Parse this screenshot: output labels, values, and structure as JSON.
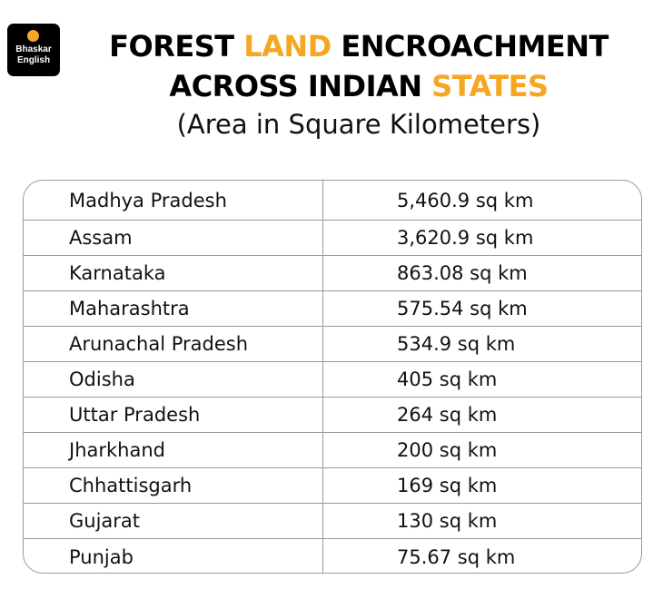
{
  "logo": {
    "line1": "Bhaskar",
    "line2": "English",
    "dot_color": "#f5a623"
  },
  "title": {
    "line1_part1": "FOREST ",
    "line1_accent": "LAND",
    "line1_part2": " ENCROACHMENT",
    "line2_part1": "ACROSS INDIAN ",
    "line2_accent": "STATES",
    "accent_color": "#f5a623"
  },
  "subtitle": "(Area in Square Kilometers)",
  "chart_data": {
    "type": "table",
    "title": "FOREST LAND ENCROACHMENT ACROSS INDIAN STATES",
    "subtitle": "(Area in Square Kilometers)",
    "columns": [
      "",
      ""
    ],
    "rows": [
      {
        "state": "Madhya Pradesh",
        "area": "5,460.9 sq km",
        "value": 5460.9
      },
      {
        "state": "Assam",
        "area": "3,620.9 sq km",
        "value": 3620.9
      },
      {
        "state": "Karnataka",
        "area": "863.08 sq km",
        "value": 863.08
      },
      {
        "state": "Maharashtra",
        "area": "575.54 sq km",
        "value": 575.54
      },
      {
        "state": "Arunachal Pradesh",
        "area": "534.9 sq km",
        "value": 534.9
      },
      {
        "state": "Odisha",
        "area": "405 sq km",
        "value": 405
      },
      {
        "state": "Uttar Pradesh",
        "area": "264 sq km",
        "value": 264
      },
      {
        "state": "Jharkhand",
        "area": "200 sq km",
        "value": 200
      },
      {
        "state": "Chhattisgarh",
        "area": "169 sq km",
        "value": 169
      },
      {
        "state": "Gujarat",
        "area": "130 sq km",
        "value": 130
      },
      {
        "state": "Punjab",
        "area": "75.67 sq km",
        "value": 75.67
      }
    ]
  }
}
